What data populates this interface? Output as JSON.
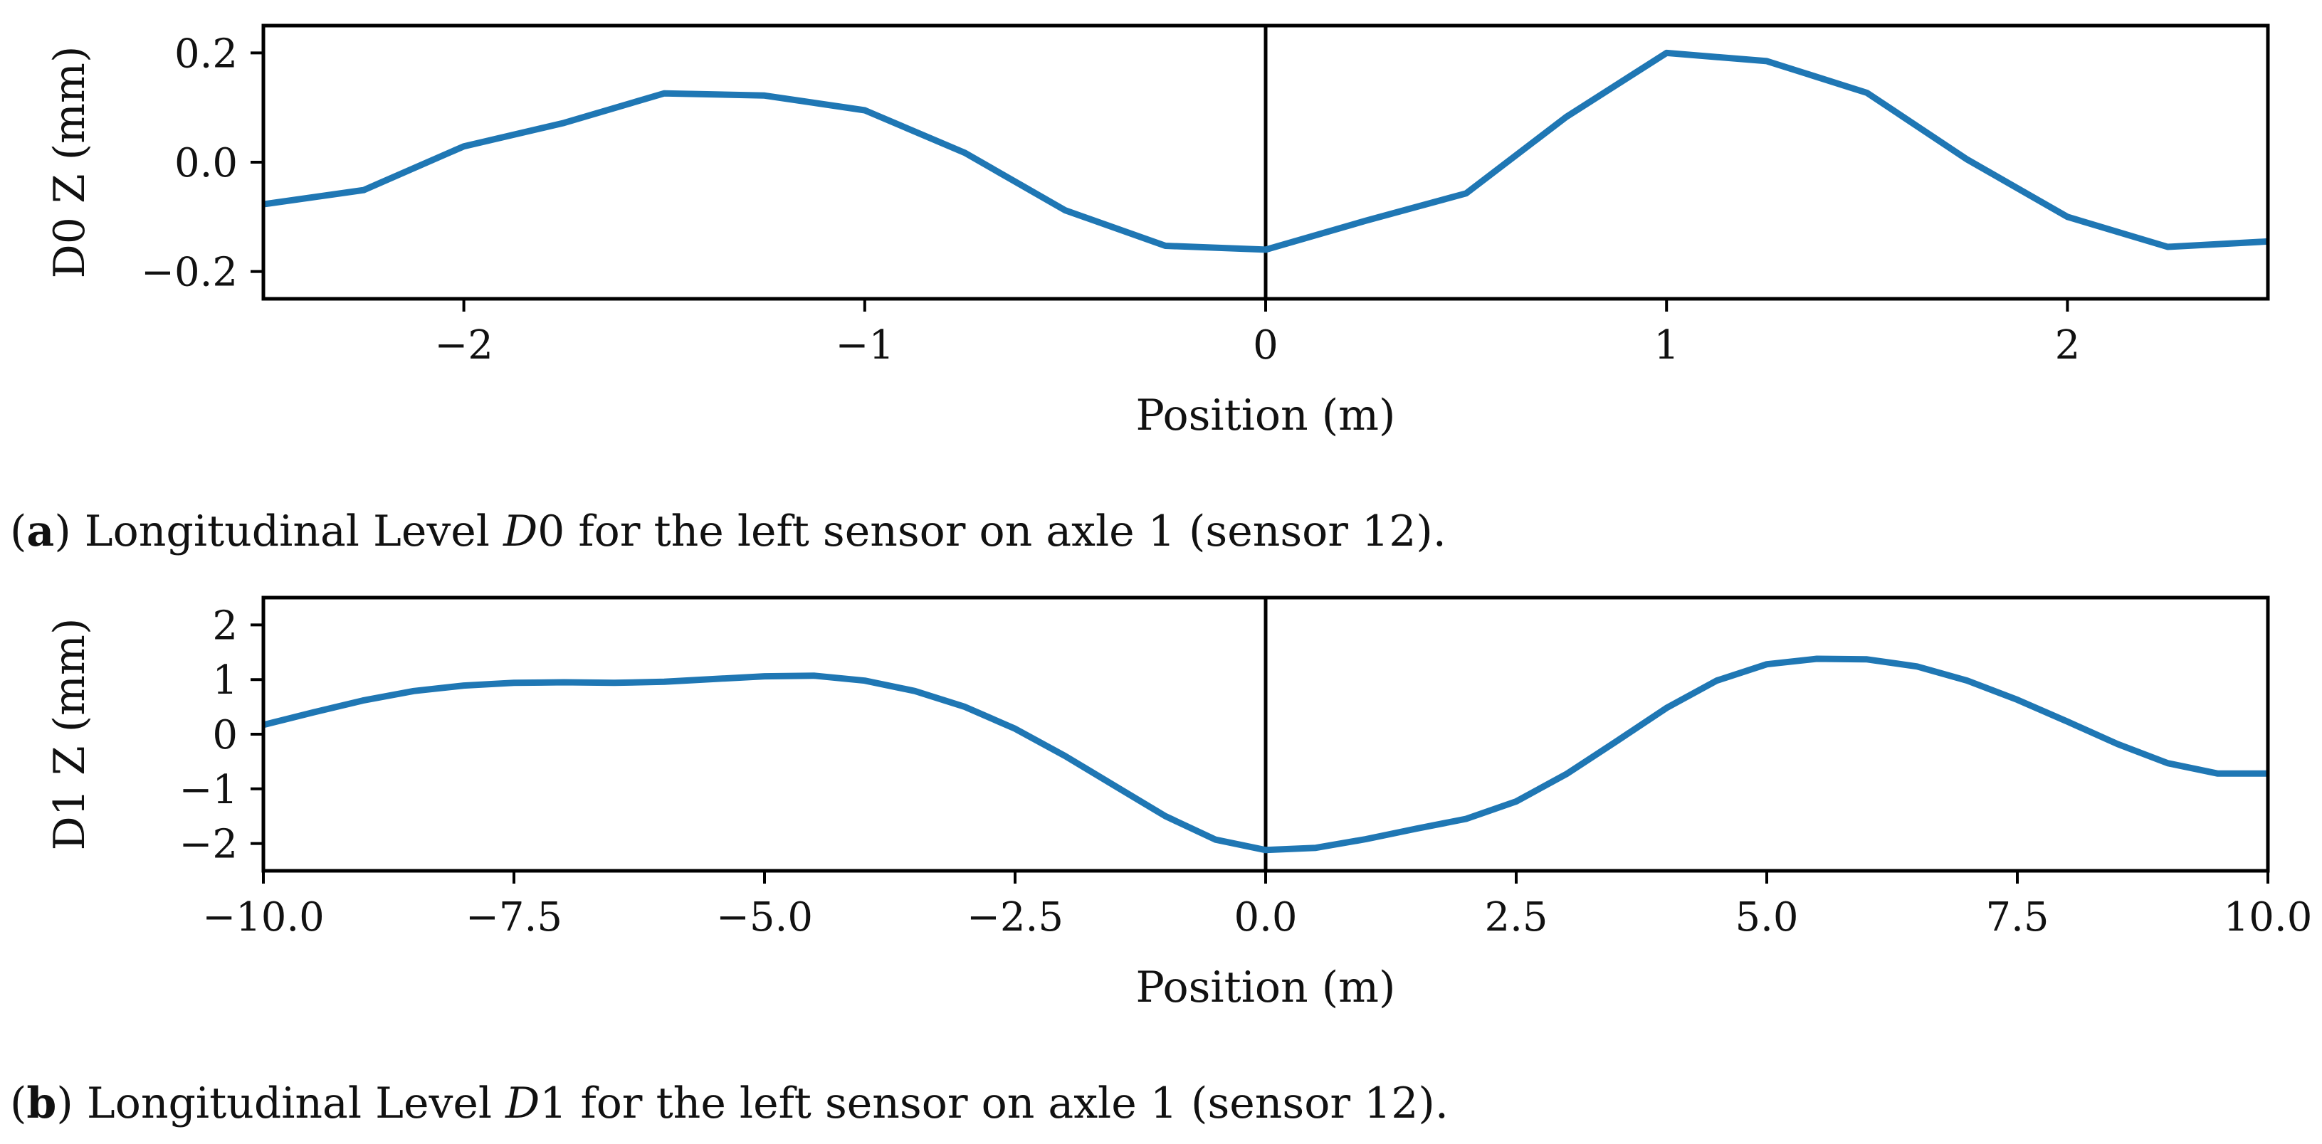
{
  "chart_data": [
    {
      "type": "line",
      "ylabel": "D0 Z (mm)",
      "xlabel": "Position (m)",
      "xlim": [
        -2.5,
        2.5
      ],
      "ylim": [
        -0.25,
        0.25
      ],
      "xticks": [
        -2,
        -1,
        0,
        1,
        2
      ],
      "xtick_labels": [
        "−2",
        "−1",
        "0",
        "1",
        "2"
      ],
      "yticks": [
        -0.2,
        0.0,
        0.2
      ],
      "ytick_labels": [
        "−0.2",
        "0.0",
        "0.2"
      ],
      "vline_x": 0,
      "grid": false,
      "color": "#1f77b4",
      "series": [
        {
          "x": [
            -2.5,
            -2.25,
            -2.0,
            -1.75,
            -1.5,
            -1.25,
            -1.0,
            -0.75,
            -0.5,
            -0.25,
            0.0,
            0.25,
            0.5,
            0.75,
            1.0,
            1.25,
            1.5,
            1.75,
            2.0,
            2.25,
            2.5
          ],
          "y": [
            -0.077,
            -0.051,
            0.029,
            0.072,
            0.126,
            0.122,
            0.095,
            0.017,
            -0.088,
            -0.153,
            -0.16,
            -0.107,
            -0.057,
            0.083,
            0.2,
            0.185,
            0.127,
            0.005,
            -0.1,
            -0.155,
            -0.145
          ]
        }
      ]
    },
    {
      "type": "line",
      "ylabel": "D1 Z (mm)",
      "xlabel": "Position (m)",
      "xlim": [
        -10,
        10
      ],
      "ylim": [
        -2.5,
        2.5
      ],
      "xticks": [
        -10,
        -7.5,
        -5,
        -2.5,
        0,
        2.5,
        5,
        7.5,
        10
      ],
      "xtick_labels": [
        "−10.0",
        "−7.5",
        "−5.0",
        "−2.5",
        "0.0",
        "2.5",
        "5.0",
        "7.5",
        "10.0"
      ],
      "yticks": [
        -2,
        -1,
        0,
        1,
        2
      ],
      "ytick_labels": [
        "−2",
        "−1",
        "0",
        "1",
        "2"
      ],
      "vline_x": 0,
      "grid": false,
      "color": "#1f77b4",
      "series": [
        {
          "x": [
            -10,
            -9.5,
            -9,
            -8.5,
            -8,
            -7.5,
            -7,
            -6.5,
            -6,
            -5.5,
            -5,
            -4.5,
            -4,
            -3.5,
            -3,
            -2.5,
            -2,
            -1.5,
            -1,
            -0.5,
            0,
            0.5,
            1,
            1.5,
            2,
            2.5,
            3,
            3.5,
            4,
            4.5,
            5,
            5.5,
            6,
            6.5,
            7,
            7.5,
            8,
            8.5,
            9,
            9.5,
            10
          ],
          "y": [
            0.17,
            0.4,
            0.62,
            0.79,
            0.89,
            0.94,
            0.95,
            0.94,
            0.96,
            1.01,
            1.06,
            1.07,
            0.98,
            0.79,
            0.5,
            0.1,
            -0.4,
            -0.95,
            -1.5,
            -1.93,
            -2.12,
            -2.08,
            -1.92,
            -1.73,
            -1.55,
            -1.23,
            -0.73,
            -0.13,
            0.48,
            0.98,
            1.28,
            1.38,
            1.37,
            1.24,
            0.98,
            0.63,
            0.23,
            -0.18,
            -0.53,
            -0.72,
            -0.72
          ]
        }
      ]
    }
  ],
  "captions": [
    {
      "tag": "a",
      "before": "Longitudinal Level ",
      "italic": "D",
      "after": "0 for the left sensor on axle 1 (sensor 12)."
    },
    {
      "tag": "b",
      "before": "Longitudinal Level ",
      "italic": "D",
      "after": "1 for the left sensor on axle 1 (sensor 12)."
    }
  ]
}
